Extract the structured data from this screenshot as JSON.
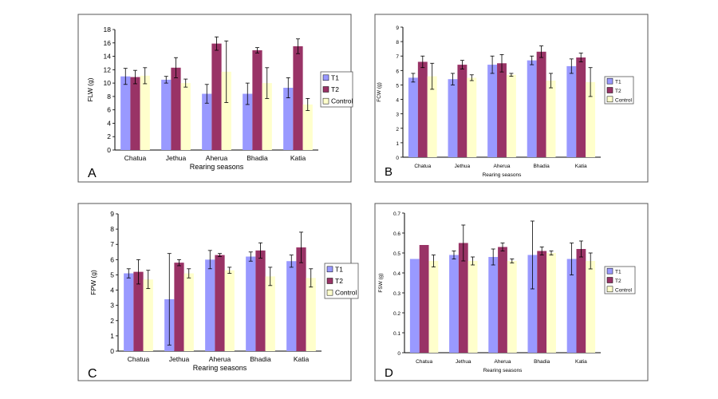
{
  "colors": {
    "T1": "#9999ff",
    "T2": "#993366",
    "Control": "#ffffcc",
    "frame": "#555555"
  },
  "chart_data": [
    {
      "type": "bar",
      "panel_label": "A",
      "categories": [
        "Chatua",
        "Jethua",
        "Aherua",
        "Bhadia",
        "Katia"
      ],
      "ylabel": "FLW (g)",
      "xlabel": "Rearing seasons",
      "ylim": [
        0,
        18
      ],
      "yticks": [
        "0",
        "2",
        "4",
        "6",
        "8",
        "10",
        "12",
        "14",
        "16",
        "18"
      ],
      "legend": [
        "T1",
        "T2",
        "Control"
      ],
      "legend_position": "right",
      "series": [
        {
          "name": "T1",
          "values": [
            11.0,
            10.5,
            8.4,
            8.4,
            9.3
          ],
          "errors": [
            1.2,
            0.5,
            1.4,
            1.6,
            1.5
          ]
        },
        {
          "name": "T2",
          "values": [
            10.9,
            12.3,
            15.9,
            14.9,
            15.5
          ],
          "errors": [
            1.0,
            1.5,
            1.0,
            0.4,
            1.1
          ]
        },
        {
          "name": "Control",
          "values": [
            11.1,
            10.0,
            11.7,
            10.0,
            6.8
          ],
          "errors": [
            1.2,
            0.6,
            4.6,
            2.3,
            0.9
          ]
        }
      ]
    },
    {
      "type": "bar",
      "panel_label": "B",
      "categories": [
        "Chatua",
        "Jethua",
        "Aherua",
        "Bhadia",
        "Katia"
      ],
      "ylabel": "FCW (g)",
      "xlabel": "Rearing seasons",
      "ylim": [
        0,
        9
      ],
      "yticks": [
        "0",
        "1",
        "2",
        "3",
        "4",
        "5",
        "6",
        "7",
        "8",
        "9"
      ],
      "legend": [
        "T1",
        "T2",
        "Control"
      ],
      "legend_position": "right",
      "series": [
        {
          "name": "T1",
          "values": [
            5.5,
            5.4,
            6.4,
            6.7,
            6.3
          ],
          "errors": [
            0.3,
            0.4,
            0.6,
            0.3,
            0.5
          ]
        },
        {
          "name": "T2",
          "values": [
            6.6,
            6.4,
            6.5,
            7.3,
            6.9
          ],
          "errors": [
            0.4,
            0.3,
            0.6,
            0.4,
            0.3
          ]
        },
        {
          "name": "Control",
          "values": [
            5.6,
            5.5,
            5.7,
            5.3,
            5.2
          ],
          "errors": [
            0.9,
            0.2,
            0.1,
            0.5,
            1.0
          ]
        }
      ]
    },
    {
      "type": "bar",
      "panel_label": "C",
      "categories": [
        "Chatua",
        "Jethua",
        "Aherua",
        "Bhadia",
        "Katia"
      ],
      "ylabel": "FPW (g)",
      "xlabel": "Rearing seasons",
      "ylim": [
        0,
        9
      ],
      "yticks": [
        "0",
        "1",
        "2",
        "3",
        "4",
        "5",
        "6",
        "7",
        "8",
        "9"
      ],
      "legend": [
        "T1",
        "T2",
        "Control"
      ],
      "legend_position": "right",
      "series": [
        {
          "name": "T1",
          "values": [
            5.1,
            3.4,
            6.0,
            6.2,
            5.9
          ],
          "errors": [
            0.3,
            3.0,
            0.6,
            0.3,
            0.4
          ]
        },
        {
          "name": "T2",
          "values": [
            5.2,
            5.8,
            6.3,
            6.6,
            6.8
          ],
          "errors": [
            0.8,
            0.2,
            0.1,
            0.5,
            1.0
          ]
        },
        {
          "name": "Control",
          "values": [
            4.7,
            5.1,
            5.3,
            4.9,
            4.8
          ],
          "errors": [
            0.6,
            0.3,
            0.2,
            0.6,
            0.6
          ]
        }
      ]
    },
    {
      "type": "bar",
      "panel_label": "D",
      "categories": [
        "Chatua",
        "Jethua",
        "Aherua",
        "Bhadia",
        "Katia"
      ],
      "ylabel": "FSW (g)",
      "xlabel": "Rearing seasons",
      "ylim": [
        0,
        0.7
      ],
      "yticks": [
        "0",
        "0.1",
        "0.2",
        "0.3",
        "0.4",
        "0.5",
        "0.6",
        "0.7"
      ],
      "legend": [
        "T1",
        "T2",
        "Control"
      ],
      "legend_position": "right",
      "series": [
        {
          "name": "T1",
          "values": [
            0.47,
            0.49,
            0.48,
            0.49,
            0.47
          ],
          "errors": [
            0.0,
            0.02,
            0.04,
            0.17,
            0.08
          ]
        },
        {
          "name": "T2",
          "values": [
            0.54,
            0.55,
            0.53,
            0.51,
            0.52
          ],
          "errors": [
            0.0,
            0.09,
            0.02,
            0.02,
            0.04
          ]
        },
        {
          "name": "Control",
          "values": [
            0.46,
            0.46,
            0.46,
            0.5,
            0.46
          ],
          "errors": [
            0.03,
            0.02,
            0.01,
            0.01,
            0.04
          ]
        }
      ]
    }
  ]
}
